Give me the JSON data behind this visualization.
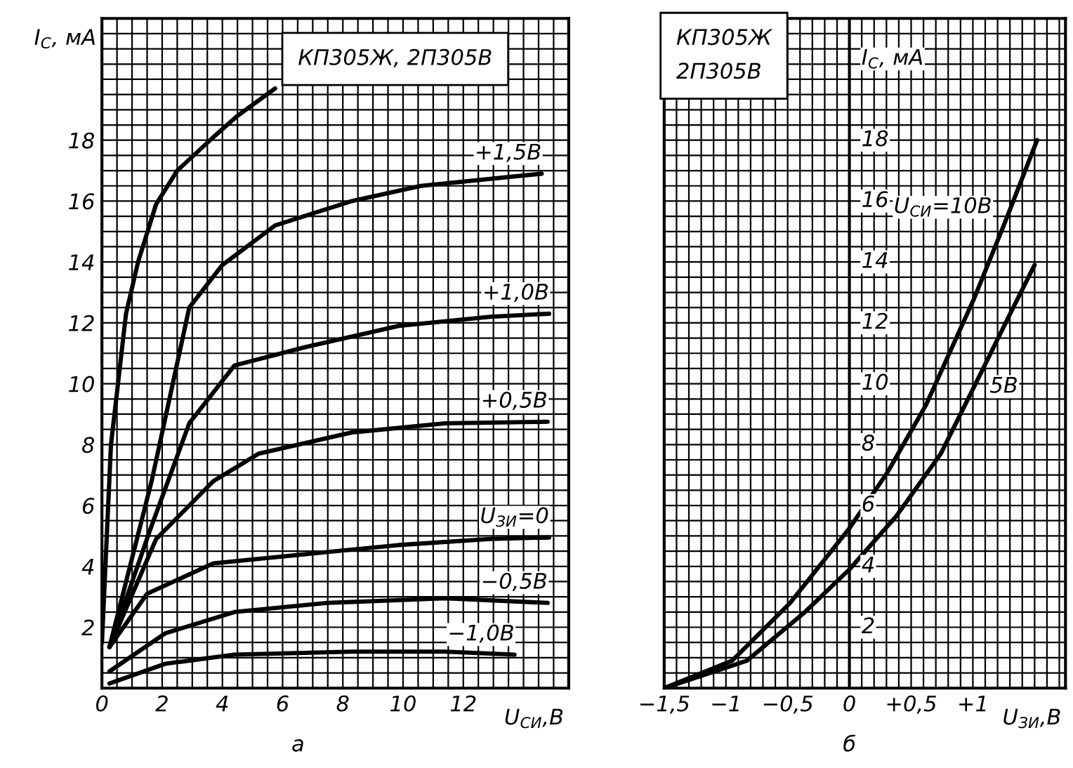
{
  "chart_data": [
    {
      "type": "line",
      "title": "КП305Ж, 2П305В",
      "ylabel": "I$_{С}$, мА",
      "xlabel": "U$_{СИ}$,В",
      "annotations": [
        "а"
      ],
      "xlim": [
        0,
        15.5
      ],
      "ylim": [
        0,
        22
      ],
      "xticks": [
        0,
        2,
        4,
        6,
        8,
        10,
        12
      ],
      "yticks": [
        2,
        4,
        6,
        8,
        10,
        12,
        14,
        16,
        18
      ],
      "grid": true,
      "series": [
        {
          "color": "#000000",
          "x": [
            0,
            0.3,
            0.8,
            1.2,
            1.8,
            2.5,
            3.7,
            4.5,
            5.75
          ],
          "values": [
            1.5,
            8,
            12.3,
            14,
            15.9,
            17,
            18.1,
            18.8,
            19.7
          ]
        },
        {
          "name": "+1,5В",
          "color": "#000000",
          "x": [
            0.25,
            1.65,
            2.9,
            4,
            5.75,
            8.3,
            10.6,
            14.6
          ],
          "values": [
            1.35,
            6.8,
            12.5,
            13.9,
            15.2,
            16,
            16.5,
            16.9
          ]
        },
        {
          "name": "+1,0В",
          "color": "#000000",
          "x": [
            0.25,
            1.6,
            2.9,
            4.4,
            6.75,
            9.85,
            12.9,
            14.85
          ],
          "values": [
            1.35,
            5.2,
            8.7,
            10.6,
            11.2,
            11.9,
            12.2,
            12.3
          ]
        },
        {
          "name": "+0,5В",
          "color": "#000000",
          "x": [
            0.25,
            1.8,
            3.7,
            5.2,
            8.3,
            11.4,
            14.8
          ],
          "values": [
            1.35,
            4.9,
            6.8,
            7.7,
            8.4,
            8.7,
            8.75
          ]
        },
        {
          "name": "U$_{ЗИ}$=0",
          "color": "#000000",
          "x": [
            0.25,
            1.5,
            3.7,
            6.75,
            9.85,
            12.9,
            14.85
          ],
          "values": [
            1.35,
            3.1,
            4.1,
            4.4,
            4.7,
            4.9,
            4.95
          ]
        },
        {
          "name": "−0,5В",
          "color": "#000000",
          "x": [
            0.25,
            2.1,
            4.4,
            7.5,
            11.4,
            14.8
          ],
          "values": [
            0.55,
            1.8,
            2.5,
            2.8,
            2.95,
            2.8
          ]
        },
        {
          "name": "−1,0В",
          "color": "#000000",
          "x": [
            0.25,
            2.1,
            4.4,
            8.3,
            11.4,
            13.7
          ],
          "values": [
            0.15,
            0.8,
            1.1,
            1.2,
            1.2,
            1.1
          ]
        }
      ]
    },
    {
      "type": "line",
      "title": "КП305Ж\n2П305В",
      "ylabel": "I$_{С}$, мА",
      "xlabel": "U$_{ЗИ}$,В",
      "annotations": [
        "б"
      ],
      "xlim": [
        -1.5,
        1.75
      ],
      "ylim": [
        0,
        22
      ],
      "xticks": [
        {
          "value": -1.5,
          "label": "−1,5"
        },
        {
          "value": -1,
          "label": "−1"
        },
        {
          "value": -0.5,
          "label": "−0,5"
        },
        0,
        {
          "value": 0.5,
          "label": "+0,5"
        },
        {
          "value": 1,
          "label": "+1"
        }
      ],
      "yticks": [
        2,
        4,
        6,
        8,
        10,
        12,
        14,
        16,
        18
      ],
      "grid": true,
      "series": [
        {
          "name": "U$_{СИ}$=10В",
          "color": "#000000",
          "x": [
            -1.5,
            -0.95,
            -0.48,
            0,
            0.31,
            0.62,
            1.01,
            1.25,
            1.52
          ],
          "values": [
            0,
            0.9,
            2.8,
            5.25,
            7.1,
            9.3,
            12.8,
            15.2,
            18
          ]
        },
        {
          "name": "5В",
          "color": "#000000",
          "x": [
            -1.5,
            -0.83,
            -0.36,
            0,
            0.38,
            0.74,
            1.01,
            1.29,
            1.5
          ],
          "values": [
            0,
            0.9,
            2.5,
            3.9,
            5.65,
            7.7,
            9.9,
            12.2,
            13.9
          ]
        }
      ]
    }
  ]
}
